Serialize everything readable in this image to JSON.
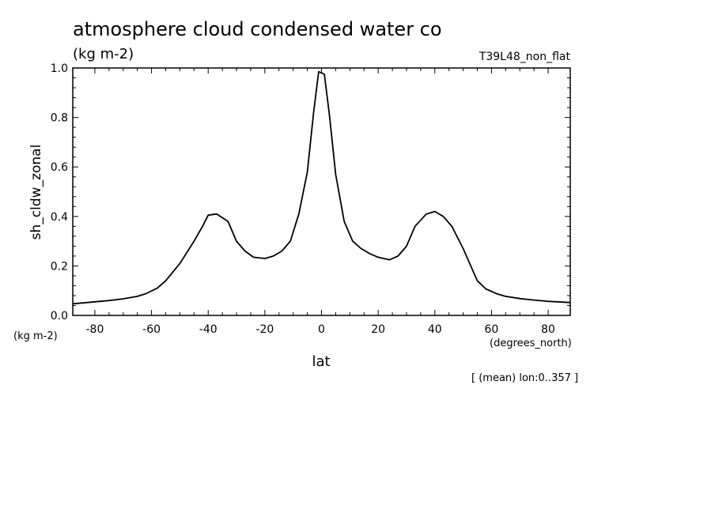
{
  "chart_data": {
    "type": "line",
    "title": "atmosphere cloud condensed water co",
    "units": "(kg m-2)",
    "experiment": "T39L48_non_flat",
    "xlabel": "lat",
    "x_units": "(degrees_north)",
    "ylabel": "sh_cldw_zonal",
    "y_units": "(kg m-2)",
    "footnote": "[ (mean) lon:0..357 ]",
    "xlim": [
      -87.8,
      87.8
    ],
    "ylim": [
      0.0,
      1.0
    ],
    "x_ticks": [
      -80,
      -60,
      -40,
      -20,
      0,
      20,
      40,
      60,
      80
    ],
    "x_tick_labels": [
      "-80",
      "-60",
      "-40",
      "-20",
      "0",
      "20",
      "40",
      "60",
      "80"
    ],
    "y_ticks": [
      0.0,
      0.2,
      0.4,
      0.6,
      0.8,
      1.0
    ],
    "y_tick_labels": [
      "0.0",
      "0.2",
      "0.4",
      "0.6",
      "0.8",
      "1.0"
    ],
    "grid": false,
    "series": [
      {
        "x": [
          -87.8,
          -80,
          -75,
          -70,
          -65,
          -62,
          -58,
          -55,
          -50,
          -45,
          -42,
          -40,
          -37,
          -33,
          -30,
          -27,
          -24,
          -20,
          -17,
          -14,
          -11,
          -8,
          -5,
          -2.8,
          -1,
          1,
          2.8,
          5,
          8,
          11,
          14,
          17,
          20,
          24,
          27,
          30,
          33,
          37,
          40,
          43,
          46,
          50,
          55,
          58,
          62,
          65,
          70,
          75,
          80,
          87.8
        ],
        "y": [
          0.047,
          0.055,
          0.06,
          0.067,
          0.077,
          0.088,
          0.11,
          0.14,
          0.21,
          0.3,
          0.36,
          0.405,
          0.41,
          0.38,
          0.3,
          0.26,
          0.235,
          0.23,
          0.24,
          0.26,
          0.3,
          0.41,
          0.58,
          0.82,
          0.985,
          0.975,
          0.81,
          0.57,
          0.38,
          0.3,
          0.27,
          0.25,
          0.235,
          0.225,
          0.24,
          0.28,
          0.36,
          0.41,
          0.42,
          0.4,
          0.36,
          0.27,
          0.14,
          0.107,
          0.087,
          0.077,
          0.068,
          0.062,
          0.057,
          0.052
        ]
      }
    ]
  }
}
